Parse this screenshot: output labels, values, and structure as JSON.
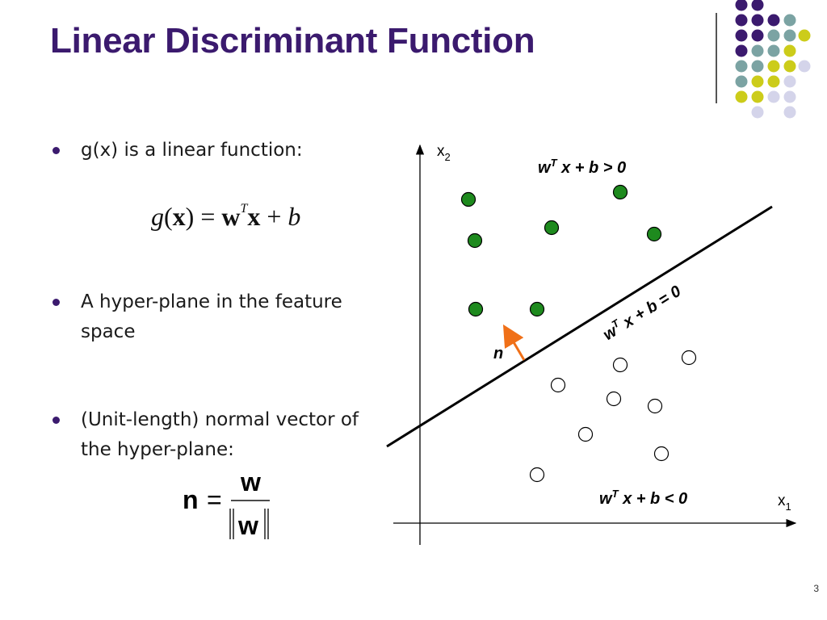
{
  "title": "Linear Discriminant Function",
  "bullets": [
    {
      "line1": "g(x) is a linear function:",
      "line2": ""
    },
    {
      "line1": "A hyper-plane in the feature",
      "line2": "space"
    },
    {
      "line1": "(Unit-length) normal vector of",
      "line2": "the hyper-plane:"
    }
  ],
  "formula1": {
    "g": "g",
    "open": "(",
    "x": "x",
    "close": ")",
    "eq": " = ",
    "w": "w",
    "T": "T",
    "x2": "x",
    "plus": " + ",
    "b": "b"
  },
  "formula2": {
    "n": "n",
    "eq": "=",
    "num": "w",
    "den": "w"
  },
  "diagram": {
    "x_axis_label": "x",
    "x_axis_sub": "1",
    "y_axis_label": "x",
    "y_axis_sub": "2",
    "region_positive": {
      "w": "w",
      "T": "T",
      "rest": " x + b > 0"
    },
    "boundary": {
      "w": "w",
      "T": "T",
      "rest": " x + b = 0"
    },
    "region_negative": {
      "w": "w",
      "T": "T",
      "rest": " x + b < 0"
    },
    "normal_label": "n",
    "colors": {
      "positive": "#1e8a1e",
      "negative": "#ffffff",
      "arrow": "#f07018",
      "line": "#000000"
    }
  },
  "page_number": "3"
}
